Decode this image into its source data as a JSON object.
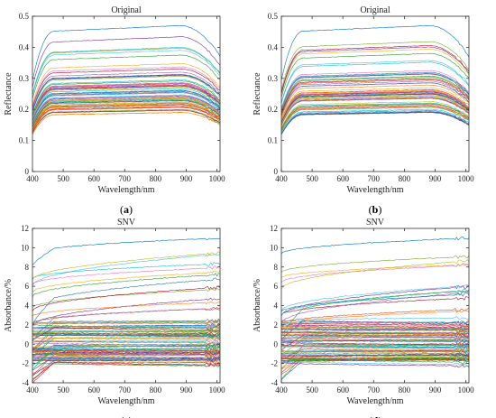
{
  "chart_data": [
    {
      "type": "line",
      "panel_label": "a",
      "title": "Original",
      "xlabel": "Wavelength/nm",
      "ylabel": "Reflectance",
      "xlim": [
        400,
        1010
      ],
      "ylim": [
        0,
        0.5
      ],
      "xticks": [
        400,
        500,
        600,
        700,
        800,
        900,
        1000
      ],
      "yticks": [
        0,
        0.1,
        0.2,
        0.3,
        0.4,
        0.5
      ],
      "grid": false,
      "legend": "none",
      "series_count": 60,
      "series_range": {
        "lowest_at_900nm": 0.19,
        "highest_at_900nm": 0.47,
        "bulk_at_900nm": [
          0.19,
          0.32
        ]
      },
      "shape": {
        "start_factor_400nm": 0.65,
        "plateau_from_nm": 470,
        "peak_nm": 880,
        "end_factor_1010nm": 0.82
      }
    },
    {
      "type": "line",
      "panel_label": "b",
      "title": "Original",
      "xlabel": "Wavelength/nm",
      "ylabel": "Reflectance",
      "xlim": [
        400,
        1010
      ],
      "ylim": [
        0,
        0.5
      ],
      "xticks": [
        400,
        500,
        600,
        700,
        800,
        900,
        1000
      ],
      "yticks": [
        0,
        0.1,
        0.2,
        0.3,
        0.4,
        0.5
      ],
      "grid": false,
      "legend": "none",
      "series_count": 60,
      "series_range": {
        "lowest_at_900nm": 0.19,
        "highest_at_900nm": 0.47,
        "bulk_at_900nm": [
          0.19,
          0.32
        ]
      },
      "shape": {
        "start_factor_400nm": 0.65,
        "plateau_from_nm": 470,
        "peak_nm": 880,
        "end_factor_1010nm": 0.82
      }
    },
    {
      "type": "line",
      "panel_label": "c",
      "title": "SNV",
      "xlabel": "Wavelength/nm",
      "ylabel": "Absorbance/%",
      "xlim": [
        400,
        1010
      ],
      "ylim": [
        -4,
        12
      ],
      "xticks": [
        400,
        500,
        600,
        700,
        800,
        900,
        1000
      ],
      "yticks": [
        -4,
        -2,
        0,
        2,
        4,
        6,
        8,
        10,
        12
      ],
      "grid": false,
      "legend": "none",
      "series_count": 90,
      "series_range": {
        "bulk": [
          -2,
          2.5
        ],
        "top_curve": 11,
        "upper_curves": [
          3,
          9
        ]
      }
    },
    {
      "type": "line",
      "panel_label": "d",
      "title": "SNV",
      "xlabel": "Wavelength/nm",
      "ylabel": "Absorbance/%",
      "xlim": [
        400,
        1010
      ],
      "ylim": [
        -4,
        12
      ],
      "xticks": [
        400,
        500,
        600,
        700,
        800,
        900,
        1000
      ],
      "yticks": [
        -4,
        -2,
        0,
        2,
        4,
        6,
        8,
        10,
        12
      ],
      "grid": false,
      "legend": "none",
      "series_count": 90,
      "series_range": {
        "bulk": [
          -2,
          2.5
        ],
        "top_curve": 11,
        "upper_curves": [
          3,
          9
        ]
      }
    }
  ],
  "palette": [
    "#0072bd",
    "#d95319",
    "#edb120",
    "#7e2f8e",
    "#77ac30",
    "#4dbeee",
    "#a2142f",
    "#e377c2",
    "#17becf",
    "#2ca02c",
    "#ff7f0e",
    "#9467bd",
    "#1f77b4",
    "#bcbd22",
    "#d62728",
    "#8c564b"
  ]
}
